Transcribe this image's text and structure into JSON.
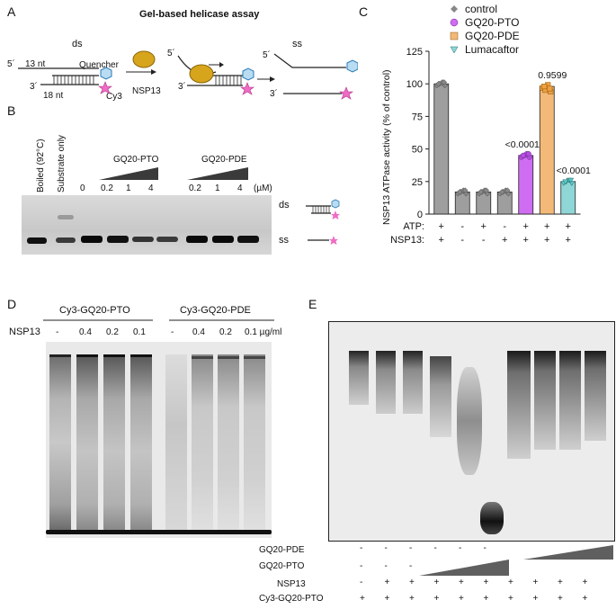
{
  "panels": {
    "a": "A",
    "b": "B",
    "c": "C",
    "d": "D",
    "e": "E"
  },
  "panel_a": {
    "title": "Gel-based helicase assay",
    "ds_label": "ds",
    "ss_label": "ss",
    "five_prime": "5´",
    "three_prime": "3´",
    "nt13": "13 nt",
    "nt18": "18 nt",
    "quencher": "Quencher",
    "cy3": "Cy3",
    "enzyme": "NSP13"
  },
  "panel_b": {
    "lanes": [
      "Boiled (92°C)",
      "Substrate only",
      "0",
      "0.2",
      "1",
      "4",
      "0.2",
      "1",
      "4"
    ],
    "gq20_pto": "GQ20-PTO",
    "gq20_pde": "GQ20-PDE",
    "unit": "(µM)",
    "ds": "ds",
    "ss": "ss"
  },
  "panel_c": {
    "ylabel": "NSP13 ATPase activity  (% of control)",
    "row_atp": "ATP:",
    "row_nsp13": "NSP13:",
    "atp": [
      "+",
      "-",
      "+",
      "-",
      "+",
      "+",
      "+"
    ],
    "nsp13": [
      "+",
      "-",
      "-",
      "+",
      "+",
      "+",
      "+"
    ],
    "pvals": [
      "<0.0001",
      "0.9599",
      "<0.0001"
    ]
  },
  "chart_data": {
    "type": "bar",
    "categories": [
      "ATP+ NSP13+",
      "ATP- NSP13-",
      "ATP+ NSP13-",
      "ATP- NSP13+",
      "ATP+ NSP13+ GQ20-PTO",
      "ATP+ NSP13+ GQ20-PDE",
      "ATP+ NSP13+ Lumacaftor"
    ],
    "series": [
      {
        "name": "control",
        "values": [
          100,
          17,
          17,
          17,
          null,
          null,
          null
        ],
        "color": "#9e9e9e"
      },
      {
        "name": "GQ20-PTO",
        "values": [
          null,
          null,
          null,
          null,
          45,
          null,
          null
        ],
        "color": "#cf6df2"
      },
      {
        "name": "GQ20-PDE",
        "values": [
          null,
          null,
          null,
          null,
          null,
          98,
          null
        ],
        "color": "#f2b978"
      },
      {
        "name": "Lumacaftor",
        "values": [
          null,
          null,
          null,
          null,
          null,
          null,
          25
        ],
        "color": "#8fd6d6"
      }
    ],
    "yticks": [
      0,
      25,
      50,
      75,
      100,
      125
    ],
    "ylim": [
      0,
      125
    ],
    "legend": "top-right"
  },
  "panel_d": {
    "group1": "Cy3-GQ20-PTO",
    "group2": "Cy3-GQ20-PDE",
    "row": "NSP13",
    "conc": [
      "-",
      "0.4",
      "0.2",
      "0.1",
      "-",
      "0.4",
      "0.2",
      "0.1 µg/ml"
    ]
  },
  "panel_e": {
    "rows": [
      {
        "label": "GQ20-PDE",
        "signs": [
          "-",
          "-",
          "-",
          "-",
          "-",
          "-"
        ]
      },
      {
        "label": "GQ20-PTO",
        "signs": [
          "-",
          "-",
          "-"
        ]
      },
      {
        "label": "NSP13",
        "signs": [
          "-",
          "+",
          "+",
          "+",
          "+",
          "+",
          "+",
          "+",
          "+",
          "+"
        ]
      },
      {
        "label": "Cy3-GQ20-PTO",
        "signs": [
          "+",
          "+",
          "+",
          "+",
          "+",
          "+",
          "+",
          "+",
          "+",
          "+"
        ]
      }
    ]
  }
}
